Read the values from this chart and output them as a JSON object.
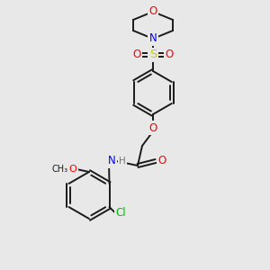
{
  "bg_color": "#e8e8e8",
  "bond_color": "#1a1a1a",
  "atom_colors": {
    "O": "#ff0000",
    "N": "#0000ff",
    "S": "#cccc00",
    "Cl": "#00bb00",
    "H": "#777777",
    "C": "#1a1a1a"
  },
  "figsize": [
    3.0,
    3.0
  ],
  "dpi": 100,
  "scale": 100
}
